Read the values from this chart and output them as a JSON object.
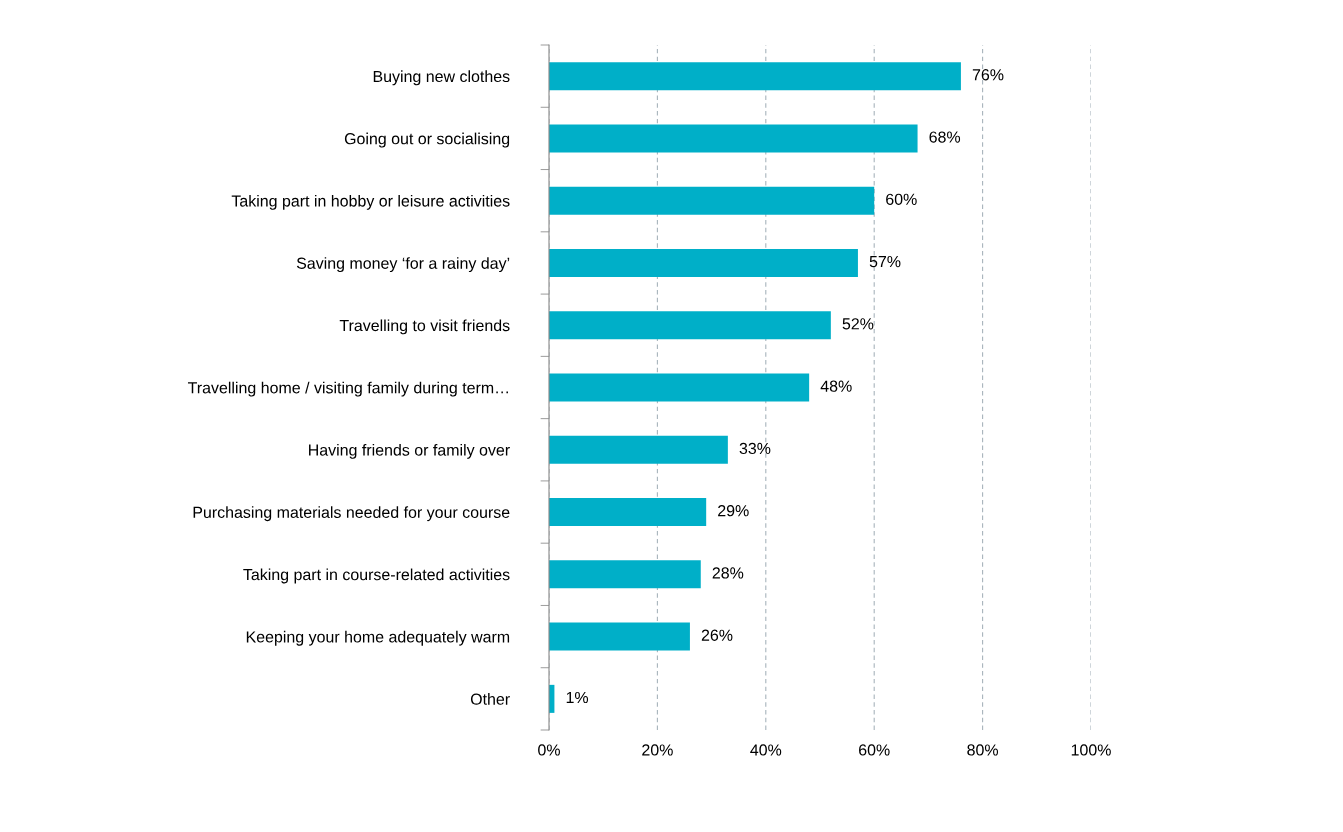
{
  "chart_data": {
    "type": "bar",
    "orientation": "horizontal",
    "categories": [
      "Buying new clothes",
      "Going out or socialising",
      "Taking part in hobby or leisure activities",
      "Saving money ‘for a rainy day’",
      "Travelling to visit friends",
      "Travelling home / visiting family during term…",
      "Having friends or family over",
      "Purchasing materials needed for your course",
      "Taking part in course-related activities",
      "Keeping your home adequately warm",
      "Other"
    ],
    "values": [
      76,
      68,
      60,
      57,
      52,
      48,
      33,
      29,
      28,
      26,
      1
    ],
    "value_labels": [
      "76%",
      "68%",
      "60%",
      "57%",
      "52%",
      "48%",
      "33%",
      "29%",
      "28%",
      "26%",
      "1%"
    ],
    "color": "#00afc8",
    "xlim": [
      0,
      100
    ],
    "xticks": [
      {
        "value": 0,
        "label": "0%"
      },
      {
        "value": 20,
        "label": "20%"
      },
      {
        "value": 40,
        "label": "40%"
      },
      {
        "value": 60,
        "label": "60%"
      },
      {
        "value": 80,
        "label": "80%"
      },
      {
        "value": 100,
        "label": "100%"
      }
    ],
    "grid": "x",
    "legend": false
  }
}
